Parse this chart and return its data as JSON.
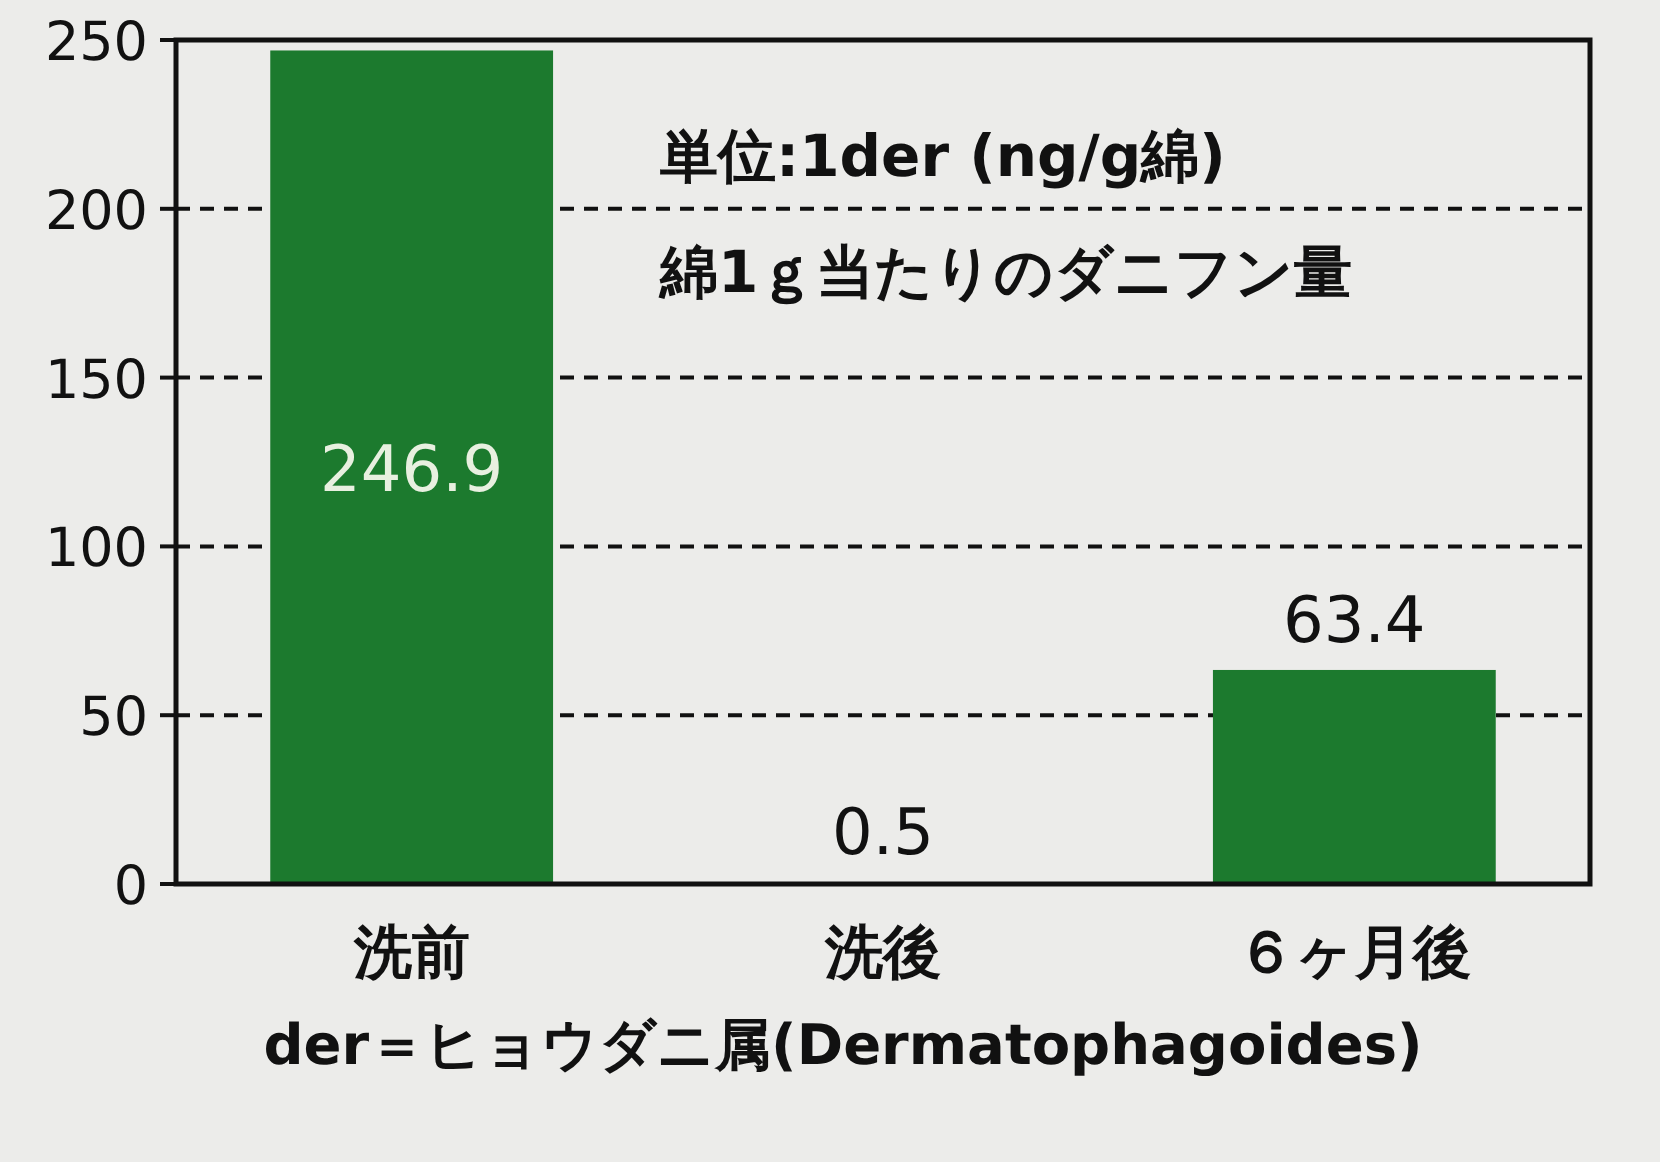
{
  "chart_data": {
    "type": "bar",
    "categories": [
      "洗前",
      "洗後",
      "６ヶ月後"
    ],
    "values": [
      246.9,
      0.5,
      63.4
    ],
    "color": "#1c7a2e",
    "data_labels": true,
    "ylim": [
      0,
      250
    ],
    "yticks": [
      0,
      50,
      100,
      150,
      200,
      250
    ],
    "grid": "y",
    "xlabel": "der＝ヒョウダニ属(Dermatophagoides)",
    "annotations": [
      "単位:1der (ng/g綿)",
      "綿1ｇ当たりのダニフン量"
    ]
  }
}
